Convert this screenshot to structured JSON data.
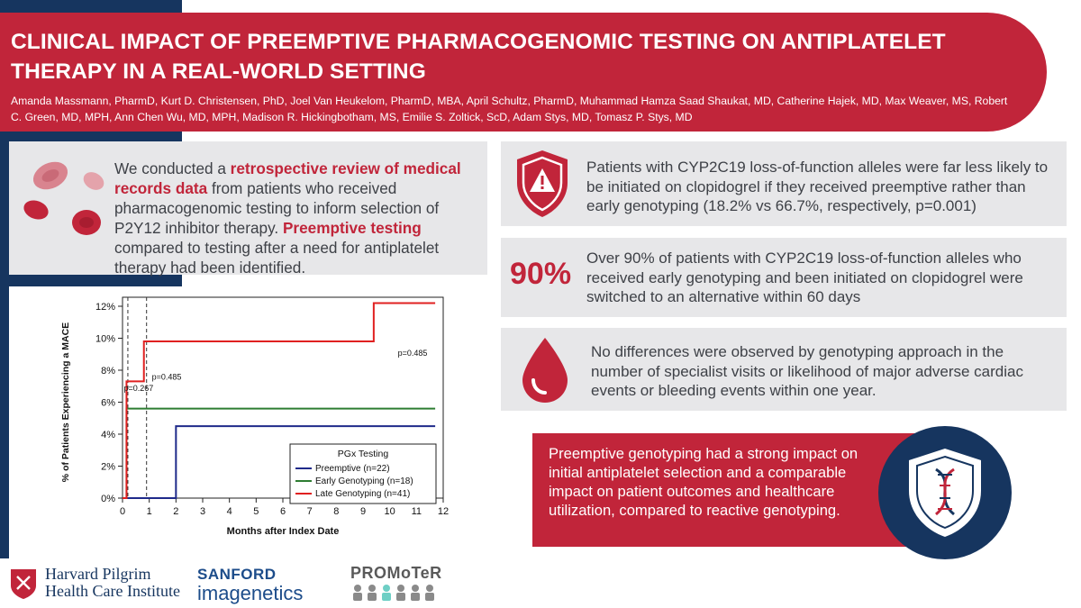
{
  "header": {
    "title": "CLINICAL IMPACT OF PREEMPTIVE PHARMACOGENOMIC TESTING ON ANTIPLATELET THERAPY IN A REAL-WORLD SETTING",
    "authors": "Amanda Massmann, PharmD, Kurt D. Christensen, PhD, Joel Van Heukelom, PharmD, MBA, April Schultz, PharmD, Muhammad Hamza Saad Shaukat, MD, Catherine Hajek, MD, Max Weaver, MS, Robert C. Green, MD, MPH, Ann Chen Wu, MD, MPH, Madison R. Hickingbotham, MS, Emilie S. Zoltick, ScD, Adam Stys, MD, Tomasz P. Stys, MD"
  },
  "intro": {
    "part1": "We conducted a ",
    "highlight1": "retrospective review of medical records data",
    "part2": " from patients who received pharmacogenomic testing to inform selection of P2Y12 inhibitor therapy. ",
    "highlight2": "Preemptive testing",
    "part3": " compared to testing after a need for antiplatelet therapy had been identified."
  },
  "findings": {
    "f1": "Patients with CYP2C19 loss-of-function alleles were far less likely to be initiated on clopidogrel if they received preemptive rather than early genotyping (18.2% vs 66.7%, respectively, p=0.001)",
    "f2_pct": "90%",
    "f2": "Over 90% of patients with CYP2C19 loss-of-function alleles who received early genotyping and been initiated on clopidogrel were switched to an alternative within 60 days",
    "f3": "No differences were observed by genotyping approach in the number of specialist visits or likelihood of major adverse cardiac events or bleeding events within one year."
  },
  "conclusion": "Preemptive genotyping had a strong impact on initial antiplatelet selection and a comparable impact on patient outcomes and healthcare utilization, compared to reactive genotyping.",
  "icons": {
    "blood_cells": "blood-cells-icon",
    "warning_shield": "warning-shield-icon",
    "blood_drop": "blood-drop-icon",
    "dna_shield": "dna-shield-icon"
  },
  "logos": {
    "harvard_line1": "Harvard Pilgrim",
    "harvard_line2": "Health Care Institute",
    "sanford_line1": "SANFORD",
    "sanford_line2": "imagenetics",
    "promoter": "PROMoTeR"
  },
  "colors": {
    "brand_red": "#c1253a",
    "navy": "#16355f",
    "panel_gray": "#e7e7e9",
    "text_gray": "#3e4147"
  },
  "chart_data": {
    "type": "line",
    "step": true,
    "xlabel": "Months after Index Date",
    "ylabel": "% of Patients Experiencing a MACE",
    "xlim": [
      0,
      12
    ],
    "ylim": [
      0,
      12
    ],
    "xticks": [
      0,
      1,
      2,
      3,
      4,
      5,
      6,
      7,
      8,
      9,
      10,
      11,
      12
    ],
    "yticks": [
      "0%",
      "2%",
      "4%",
      "6%",
      "8%",
      "10%",
      "12%"
    ],
    "ytick_values": [
      0,
      2,
      4,
      6,
      8,
      10,
      12
    ],
    "legend_title": "PGx Testing",
    "legend_position": "bottom-right",
    "vlines": [
      0.2,
      0.9
    ],
    "series": [
      {
        "name": "Preemptive (n=22)",
        "color": "#1f2a8a",
        "x": [
          0,
          2,
          11.7
        ],
        "y": [
          0,
          4.5,
          4.5
        ]
      },
      {
        "name": "Early Genotyping (n=18)",
        "color": "#2e7d32",
        "x": [
          0,
          0.15,
          11.7
        ],
        "y": [
          0,
          5.6,
          5.6
        ]
      },
      {
        "name": "Late Genotyping (n=41)",
        "color": "#e02020",
        "x": [
          0,
          0.15,
          0.8,
          9.4,
          11.7
        ],
        "y": [
          0,
          7.3,
          9.8,
          12.2,
          12.2
        ]
      }
    ],
    "annotations": [
      {
        "text": "p=0.267",
        "x": 0.05,
        "y": 6.7
      },
      {
        "text": "p=0.485",
        "x": 1.1,
        "y": 7.4
      },
      {
        "text": "p=0.485",
        "x": 10.3,
        "y": 8.9
      }
    ]
  }
}
